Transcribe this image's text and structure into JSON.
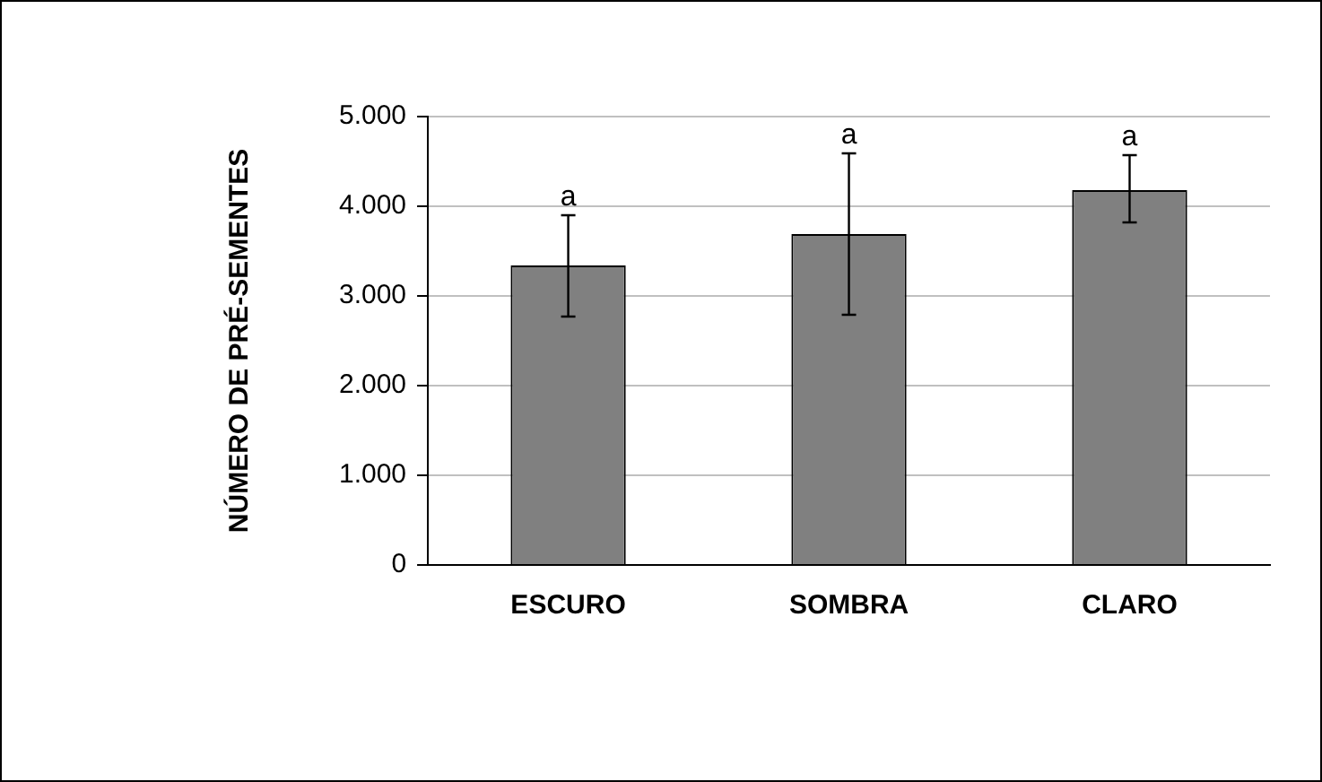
{
  "chart_data": {
    "type": "bar",
    "ylabel": "NÚMERO DE PRÉ-SEMENTES",
    "categories": [
      "ESCURO",
      "SOMBRA",
      "CLARO"
    ],
    "series": [
      {
        "color": "#808080",
        "values": [
          3340,
          3690,
          4180
        ],
        "errors": [
          [
            2770,
            3900
          ],
          [
            2790,
            4590
          ],
          [
            3820,
            4570
          ]
        ]
      }
    ],
    "ylim": [
      0,
      5000
    ],
    "yticks": [
      {
        "value": 0,
        "label": "0"
      },
      {
        "value": 1000,
        "label": "1.000"
      },
      {
        "value": 2000,
        "label": "2.000"
      },
      {
        "value": 3000,
        "label": "3.000"
      },
      {
        "value": 4000,
        "label": "4.000"
      },
      {
        "value": 5000,
        "label": "5.000"
      }
    ],
    "grid": "y",
    "legend": false,
    "annotations": [
      {
        "text": "a",
        "x": "ESCURO",
        "y": 3900
      },
      {
        "text": "a",
        "x": "SOMBRA",
        "y": 4590
      },
      {
        "text": "a",
        "x": "CLARO",
        "y": 4570
      }
    ]
  }
}
